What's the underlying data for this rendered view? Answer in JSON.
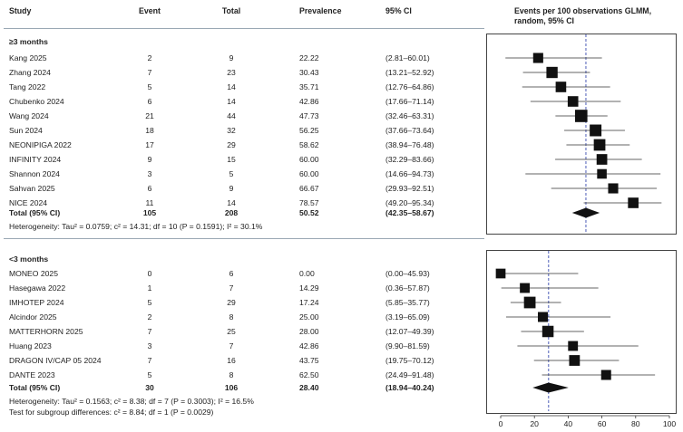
{
  "headers": {
    "study": "Study",
    "event": "Event",
    "total": "Total",
    "prevalence": "Prevalence",
    "ci": "95% CI",
    "plot_title_line1": "Events per 100 observations GLMM,",
    "plot_title_line2": "random, 95% CI"
  },
  "groups": [
    {
      "label": "≥3 months",
      "studies": [
        {
          "name": "Kang 2025",
          "event": "2",
          "total": "9",
          "prev": "22.22",
          "ci": "(2.81–60.01)",
          "est": 22.22,
          "lo": 2.81,
          "hi": 60.01
        },
        {
          "name": "Zhang 2024",
          "event": "7",
          "total": "23",
          "prev": "30.43",
          "ci": "(13.21–52.92)",
          "est": 30.43,
          "lo": 13.21,
          "hi": 52.92
        },
        {
          "name": "Tang 2022",
          "event": "5",
          "total": "14",
          "prev": "35.71",
          "ci": "(12.76–64.86)",
          "est": 35.71,
          "lo": 12.76,
          "hi": 64.86
        },
        {
          "name": "Chubenko 2024",
          "event": "6",
          "total": "14",
          "prev": "42.86",
          "ci": "(17.66–71.14)",
          "est": 42.86,
          "lo": 17.66,
          "hi": 71.14
        },
        {
          "name": "Wang 2024",
          "event": "21",
          "total": "44",
          "prev": "47.73",
          "ci": "(32.46–63.31)",
          "est": 47.73,
          "lo": 32.46,
          "hi": 63.31
        },
        {
          "name": "Sun 2024",
          "event": "18",
          "total": "32",
          "prev": "56.25",
          "ci": "(37.66–73.64)",
          "est": 56.25,
          "lo": 37.66,
          "hi": 73.64
        },
        {
          "name": "NEONIPIGA 2022",
          "event": "17",
          "total": "29",
          "prev": "58.62",
          "ci": "(38.94–76.48)",
          "est": 58.62,
          "lo": 38.94,
          "hi": 76.48
        },
        {
          "name": "INFINITY 2024",
          "event": "9",
          "total": "15",
          "prev": "60.00",
          "ci": "(32.29–83.66)",
          "est": 60.0,
          "lo": 32.29,
          "hi": 83.66
        },
        {
          "name": "Shannon 2024",
          "event": "3",
          "total": "5",
          "prev": "60.00",
          "ci": "(14.66–94.73)",
          "est": 60.0,
          "lo": 14.66,
          "hi": 94.73
        },
        {
          "name": "Sahvan 2025",
          "event": "6",
          "total": "9",
          "prev": "66.67",
          "ci": "(29.93–92.51)",
          "est": 66.67,
          "lo": 29.93,
          "hi": 92.51
        },
        {
          "name": "NICE 2024",
          "event": "11",
          "total": "14",
          "prev": "78.57",
          "ci": "(49.20–95.34)",
          "est": 78.57,
          "lo": 49.2,
          "hi": 95.34
        }
      ],
      "total": {
        "label": "Total (95% CI)",
        "event": "105",
        "total": "208",
        "prev": "50.52",
        "ci": "(42.35–58.67)",
        "est": 50.52,
        "lo": 42.35,
        "hi": 58.67
      },
      "heterogeneity": "Heterogeneity: Tau² = 0.0759; c² = 14.31; df = 10 (P = 0.1591); I² = 30.1%"
    },
    {
      "label": "<3 months",
      "studies": [
        {
          "name": "MONEO 2025",
          "event": "0",
          "total": "6",
          "prev": "0.00",
          "ci": "(0.00–45.93)",
          "est": 0.0,
          "lo": 0.0,
          "hi": 45.93
        },
        {
          "name": "Hasegawa 2022",
          "event": "1",
          "total": "7",
          "prev": "14.29",
          "ci": "(0.36–57.87)",
          "est": 14.29,
          "lo": 0.36,
          "hi": 57.87
        },
        {
          "name": "IMHOTEP 2024",
          "event": "5",
          "total": "29",
          "prev": "17.24",
          "ci": "(5.85–35.77)",
          "est": 17.24,
          "lo": 5.85,
          "hi": 35.77
        },
        {
          "name": "Alcindor 2025",
          "event": "2",
          "total": "8",
          "prev": "25.00",
          "ci": "(3.19–65.09)",
          "est": 25.0,
          "lo": 3.19,
          "hi": 65.09
        },
        {
          "name": "MATTERHORN 2025",
          "event": "7",
          "total": "25",
          "prev": "28.00",
          "ci": "(12.07–49.39)",
          "est": 28.0,
          "lo": 12.07,
          "hi": 49.39
        },
        {
          "name": "Huang 2023",
          "event": "3",
          "total": "7",
          "prev": "42.86",
          "ci": "(9.90–81.59)",
          "est": 42.86,
          "lo": 9.9,
          "hi": 81.59
        },
        {
          "name": "DRAGON IV/CAP 05 2024",
          "event": "7",
          "total": "16",
          "prev": "43.75",
          "ci": "(19.75–70.12)",
          "est": 43.75,
          "lo": 19.75,
          "hi": 70.12
        },
        {
          "name": "DANTE 2023",
          "event": "5",
          "total": "8",
          "prev": "62.50",
          "ci": "(24.49–91.48)",
          "est": 62.5,
          "lo": 24.49,
          "hi": 91.48
        }
      ],
      "total": {
        "label": "Total (95% CI)",
        "event": "30",
        "total": "106",
        "prev": "28.40",
        "ci": "(18.94–40.24)",
        "est": 28.4,
        "lo": 18.94,
        "hi": 40.24
      },
      "heterogeneity": "Heterogeneity: Tau² = 0.1563; c² = 8.38; df = 7 (P = 0.3003); I² = 16.5%"
    }
  ],
  "subgroup_test": "Test for subgroup differences: c² = 8.84; df = 1 (P = 0.0029)",
  "chart_data": {
    "type": "forest",
    "xlim": [
      0,
      100
    ],
    "xticks": [
      0,
      20,
      40,
      60,
      80,
      100
    ],
    "xtick_labels": [
      "0",
      "20",
      "40",
      "60",
      "80",
      "100"
    ],
    "pooled_reference_lines": [
      50.52,
      28.4
    ]
  }
}
